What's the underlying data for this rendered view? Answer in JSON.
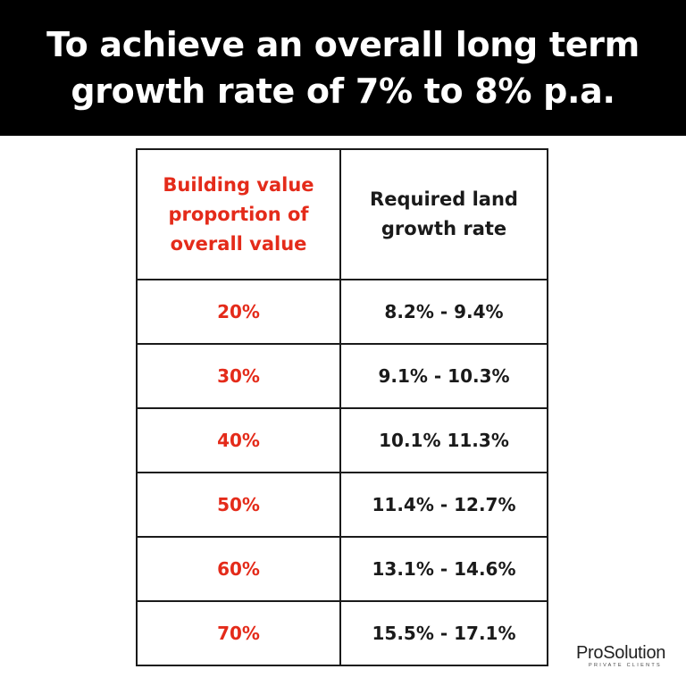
{
  "banner": {
    "line1": "To achieve an overall long term",
    "line2": "growth rate of 7% to 8% p.a."
  },
  "table": {
    "headers": [
      "Building value proportion of overall value",
      "Required land growth rate"
    ],
    "rows": [
      {
        "proportion": "20%",
        "rate": "8.2% - 9.4%"
      },
      {
        "proportion": "30%",
        "rate": "9.1% - 10.3%"
      },
      {
        "proportion": "40%",
        "rate": "10.1% 11.3%"
      },
      {
        "proportion": "50%",
        "rate": "11.4% - 12.7%"
      },
      {
        "proportion": "60%",
        "rate": "13.1% - 14.6%"
      },
      {
        "proportion": "70%",
        "rate": "15.5% - 17.1%"
      }
    ]
  },
  "brand": {
    "name": "ProSolution",
    "tagline": "PRIVATE CLIENTS"
  },
  "colors": {
    "accent_red": "#e42b1a",
    "banner_bg": "#000000",
    "text_dark": "#1a1a1a"
  }
}
